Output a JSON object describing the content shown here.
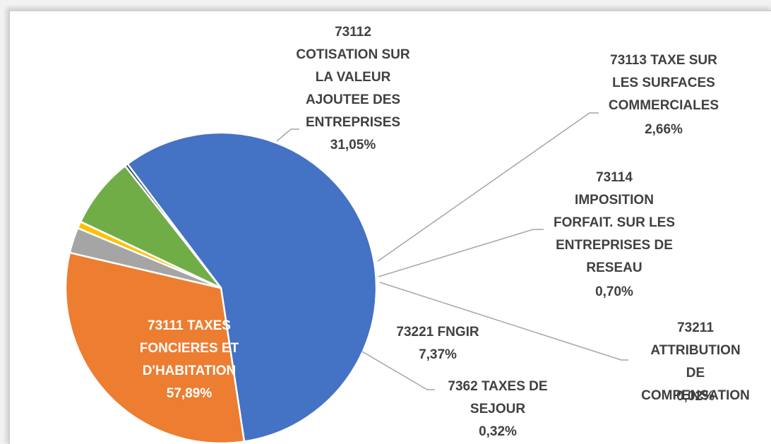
{
  "chart_data": {
    "type": "pie",
    "categories": [
      "73111   TAXES\nFONCIERES ET\nD'HABITATION",
      "73112\nCOTISATION SUR\nLA VALEUR\nAJOUTEE DES\nENTREPRISES",
      "73113   TAXE SUR\nLES SURFACES\nCOMMERCIALES",
      "73114\nIMPOSITION\nFORFAIT. SUR LES\nENTREPRISES DE\nRESEAU",
      "73211\nATTRIBUTION DE\nCOMPENSATION",
      "73221   FNGIR",
      "7362   TAXES DE\nSEJOUR"
    ],
    "values": [
      57.89,
      31.05,
      2.66,
      0.7,
      0.02,
      7.37,
      0.32
    ],
    "value_labels": [
      "57,89%",
      "31,05%",
      "2,66%",
      "0,70%",
      "0,02%",
      "7,37%",
      "0,32%"
    ],
    "colors": [
      "#4472c4",
      "#ed7d31",
      "#a5a5a5",
      "#ffc000",
      "#5b9bd5",
      "#70ad47",
      "#264478"
    ]
  }
}
